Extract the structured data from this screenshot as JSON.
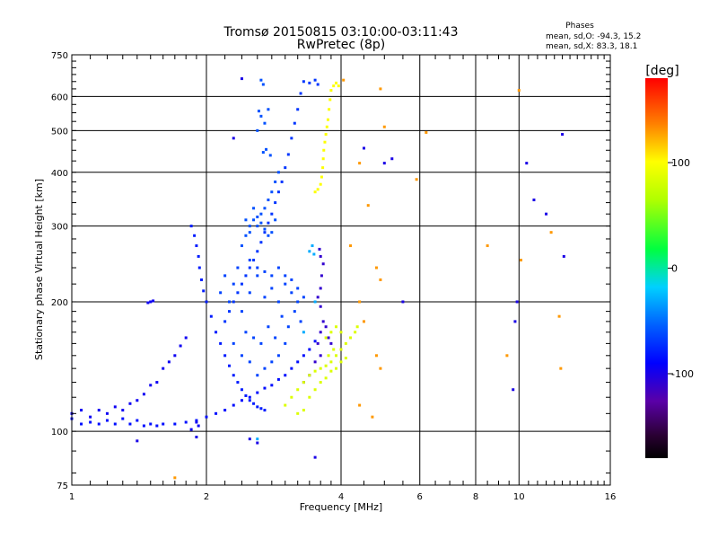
{
  "chart_data": {
    "type": "scatter",
    "title": "Tromsø 20150815 03:10:00-03:11:43",
    "subtitle": "RwPretec (8p)",
    "phases_header": {
      "title": "Phases",
      "line_o": "mean, sd,O: -94.3, 15.2",
      "line_x": "mean, sd,X:  83.3, 18.1"
    },
    "xlabel": "Frequency [MHz]",
    "ylabel": "Stationary phase Virtual Height [km]",
    "xscale": "log",
    "yscale": "log",
    "xlim": [
      1,
      16
    ],
    "ylim": [
      75,
      750
    ],
    "x_ticks": [
      1,
      2,
      4,
      6,
      8,
      10,
      16
    ],
    "x_tick_labels": [
      "1",
      "2",
      "4",
      "6",
      "8",
      "10",
      "16"
    ],
    "y_ticks": [
      75,
      100,
      200,
      300,
      400,
      500,
      600,
      750
    ],
    "y_tick_labels": [
      "75",
      "100",
      "200",
      "300",
      "400",
      "500",
      "600",
      "750"
    ],
    "grid": true,
    "colorbar": {
      "label": "[deg]",
      "range": [
        -180,
        180
      ],
      "ticks": [
        100,
        0,
        -100
      ],
      "tick_labels": [
        "100",
        "0",
        "-100"
      ]
    },
    "series": [
      {
        "phase_deg": -85,
        "points": [
          [
            1.0,
            107
          ],
          [
            1.05,
            104
          ],
          [
            1.1,
            105
          ],
          [
            1.15,
            104
          ],
          [
            1.2,
            106
          ],
          [
            1.25,
            104
          ],
          [
            1.3,
            107
          ],
          [
            1.35,
            104
          ],
          [
            1.4,
            106
          ],
          [
            1.45,
            103
          ],
          [
            1.5,
            104
          ],
          [
            1.55,
            103
          ],
          [
            1.6,
            104
          ],
          [
            1.7,
            104
          ],
          [
            1.8,
            105
          ],
          [
            1.9,
            106
          ],
          [
            2.0,
            108
          ],
          [
            2.1,
            110
          ],
          [
            2.2,
            112
          ],
          [
            2.3,
            115
          ],
          [
            2.4,
            118
          ],
          [
            2.5,
            120
          ],
          [
            2.6,
            123
          ],
          [
            2.7,
            126
          ],
          [
            2.8,
            128
          ],
          [
            2.9,
            132
          ],
          [
            3.0,
            135
          ],
          [
            3.1,
            140
          ],
          [
            3.2,
            145
          ],
          [
            3.3,
            150
          ],
          [
            3.4,
            155
          ],
          [
            3.5,
            162
          ]
        ]
      },
      {
        "phase_deg": -95,
        "points": [
          [
            1.0,
            110
          ],
          [
            1.05,
            112
          ],
          [
            1.1,
            108
          ],
          [
            1.15,
            112
          ],
          [
            1.2,
            110
          ],
          [
            1.25,
            114
          ],
          [
            1.3,
            112
          ],
          [
            1.35,
            116
          ],
          [
            1.4,
            118
          ],
          [
            1.45,
            122
          ],
          [
            1.5,
            128
          ],
          [
            1.55,
            130
          ],
          [
            1.6,
            140
          ],
          [
            1.65,
            145
          ],
          [
            1.7,
            150
          ],
          [
            1.75,
            158
          ],
          [
            1.8,
            165
          ],
          [
            1.5,
            200
          ],
          [
            1.52,
            201
          ],
          [
            1.48,
            199
          ],
          [
            1.9,
            105
          ],
          [
            1.92,
            103
          ],
          [
            1.85,
            101
          ]
        ]
      },
      {
        "phase_deg": -80,
        "points": [
          [
            1.85,
            300
          ],
          [
            1.88,
            285
          ],
          [
            1.9,
            270
          ],
          [
            1.92,
            255
          ],
          [
            1.93,
            240
          ],
          [
            1.95,
            225
          ],
          [
            1.97,
            212
          ],
          [
            2.0,
            200
          ],
          [
            2.05,
            185
          ],
          [
            2.1,
            170
          ],
          [
            2.15,
            160
          ],
          [
            2.2,
            150
          ],
          [
            2.25,
            142
          ],
          [
            2.3,
            135
          ],
          [
            2.35,
            130
          ],
          [
            2.4,
            125
          ],
          [
            2.45,
            121
          ],
          [
            2.5,
            118
          ],
          [
            2.55,
            116
          ],
          [
            2.6,
            114
          ],
          [
            2.65,
            113
          ],
          [
            2.7,
            112
          ]
        ]
      },
      {
        "phase_deg": -70,
        "points": [
          [
            2.2,
            180
          ],
          [
            2.25,
            190
          ],
          [
            2.3,
            200
          ],
          [
            2.35,
            210
          ],
          [
            2.4,
            220
          ],
          [
            2.45,
            230
          ],
          [
            2.5,
            240
          ],
          [
            2.55,
            250
          ],
          [
            2.6,
            262
          ],
          [
            2.65,
            275
          ],
          [
            2.7,
            290
          ],
          [
            2.75,
            305
          ],
          [
            2.8,
            320
          ],
          [
            2.85,
            340
          ],
          [
            2.9,
            360
          ],
          [
            2.95,
            380
          ],
          [
            3.0,
            410
          ],
          [
            3.05,
            440
          ],
          [
            3.1,
            480
          ],
          [
            3.15,
            520
          ],
          [
            3.2,
            560
          ],
          [
            3.25,
            610
          ],
          [
            3.3,
            650
          ],
          [
            3.4,
            645
          ],
          [
            3.5,
            655
          ],
          [
            3.55,
            640
          ]
        ]
      },
      {
        "phase_deg": -60,
        "points": [
          [
            2.4,
            270
          ],
          [
            2.45,
            285
          ],
          [
            2.5,
            300
          ],
          [
            2.55,
            310
          ],
          [
            2.6,
            315
          ],
          [
            2.65,
            320
          ],
          [
            2.7,
            330
          ],
          [
            2.75,
            345
          ],
          [
            2.8,
            360
          ],
          [
            2.85,
            380
          ],
          [
            2.9,
            400
          ],
          [
            2.6,
            300
          ],
          [
            2.7,
            295
          ],
          [
            2.8,
            290
          ],
          [
            2.5,
            290
          ],
          [
            2.45,
            310
          ],
          [
            2.55,
            330
          ],
          [
            2.65,
            305
          ],
          [
            2.75,
            285
          ],
          [
            2.85,
            310
          ],
          [
            2.6,
            500
          ],
          [
            2.62,
            555
          ],
          [
            2.65,
            540
          ],
          [
            2.7,
            520
          ],
          [
            2.75,
            560
          ],
          [
            2.68,
            445
          ],
          [
            2.72,
            452
          ],
          [
            2.78,
            438
          ],
          [
            2.65,
            655
          ],
          [
            2.68,
            640
          ]
        ]
      },
      {
        "phase_deg": -65,
        "points": [
          [
            2.4,
            190
          ],
          [
            2.5,
            210
          ],
          [
            2.6,
            230
          ],
          [
            2.7,
            205
          ],
          [
            2.8,
            215
          ],
          [
            2.9,
            200
          ],
          [
            3.0,
            220
          ],
          [
            3.1,
            210
          ],
          [
            3.2,
            200
          ],
          [
            2.45,
            170
          ],
          [
            2.55,
            165
          ],
          [
            2.65,
            160
          ],
          [
            2.75,
            175
          ],
          [
            2.85,
            165
          ],
          [
            2.95,
            185
          ],
          [
            3.05,
            175
          ],
          [
            3.15,
            190
          ],
          [
            2.5,
            250
          ],
          [
            2.6,
            240
          ],
          [
            2.7,
            235
          ],
          [
            2.8,
            230
          ],
          [
            2.9,
            240
          ],
          [
            3.0,
            230
          ],
          [
            3.1,
            225
          ],
          [
            3.2,
            215
          ],
          [
            3.3,
            205
          ],
          [
            3.25,
            180
          ],
          [
            3.0,
            160
          ],
          [
            2.9,
            150
          ],
          [
            2.8,
            145
          ],
          [
            2.7,
            140
          ],
          [
            2.6,
            135
          ],
          [
            2.5,
            145
          ],
          [
            2.4,
            150
          ],
          [
            2.3,
            160
          ],
          [
            2.3,
            220
          ],
          [
            2.35,
            240
          ],
          [
            2.25,
            200
          ],
          [
            2.2,
            230
          ],
          [
            2.15,
            210
          ]
        ]
      },
      {
        "phase_deg": -110,
        "points": [
          [
            3.3,
            130
          ],
          [
            3.4,
            135
          ],
          [
            3.5,
            145
          ],
          [
            3.6,
            150
          ],
          [
            3.55,
            160
          ],
          [
            3.6,
            170
          ],
          [
            3.65,
            180
          ],
          [
            3.6,
            195
          ],
          [
            3.55,
            205
          ],
          [
            3.6,
            215
          ],
          [
            3.62,
            230
          ],
          [
            3.65,
            245
          ],
          [
            3.6,
            255
          ],
          [
            3.58,
            265
          ],
          [
            3.7,
            175
          ],
          [
            3.75,
            165
          ],
          [
            3.8,
            160
          ]
        ]
      },
      {
        "phase_deg": 100,
        "points": [
          [
            3.5,
            360
          ],
          [
            3.55,
            365
          ],
          [
            3.6,
            375
          ],
          [
            3.62,
            390
          ],
          [
            3.64,
            410
          ],
          [
            3.65,
            430
          ],
          [
            3.66,
            450
          ],
          [
            3.68,
            470
          ],
          [
            3.7,
            490
          ],
          [
            3.72,
            510
          ],
          [
            3.74,
            530
          ],
          [
            3.76,
            560
          ],
          [
            3.78,
            590
          ],
          [
            3.8,
            620
          ],
          [
            3.85,
            635
          ],
          [
            3.9,
            645
          ],
          [
            3.95,
            635
          ]
        ]
      },
      {
        "phase_deg": 85,
        "points": [
          [
            3.0,
            115
          ],
          [
            3.1,
            120
          ],
          [
            3.2,
            125
          ],
          [
            3.3,
            130
          ],
          [
            3.4,
            135
          ],
          [
            3.5,
            138
          ],
          [
            3.6,
            140
          ],
          [
            3.7,
            142
          ],
          [
            3.8,
            145
          ],
          [
            3.9,
            150
          ],
          [
            4.0,
            155
          ],
          [
            4.1,
            160
          ],
          [
            4.2,
            165
          ],
          [
            4.3,
            170
          ],
          [
            4.35,
            175
          ],
          [
            3.2,
            110
          ],
          [
            3.3,
            112
          ],
          [
            3.4,
            120
          ],
          [
            3.5,
            125
          ],
          [
            3.6,
            130
          ],
          [
            3.7,
            133
          ],
          [
            3.8,
            138
          ],
          [
            3.9,
            140
          ],
          [
            4.0,
            145
          ],
          [
            4.1,
            148
          ],
          [
            3.7,
            165
          ],
          [
            3.8,
            170
          ],
          [
            3.9,
            175
          ],
          [
            4.0,
            170
          ],
          [
            3.75,
            150
          ],
          [
            3.85,
            155
          ]
        ]
      },
      {
        "phase_deg": 130,
        "points": [
          [
            4.05,
            655
          ],
          [
            4.9,
            625
          ],
          [
            5.0,
            510
          ],
          [
            4.4,
            420
          ],
          [
            4.6,
            335
          ],
          [
            4.2,
            270
          ],
          [
            4.8,
            240
          ],
          [
            4.9,
            225
          ],
          [
            4.4,
            200
          ],
          [
            4.5,
            180
          ],
          [
            4.8,
            150
          ],
          [
            4.9,
            140
          ],
          [
            4.4,
            115
          ],
          [
            4.7,
            108
          ],
          [
            5.9,
            385
          ],
          [
            6.2,
            495
          ],
          [
            8.5,
            270
          ],
          [
            10.0,
            620
          ],
          [
            10.1,
            250
          ],
          [
            9.4,
            150
          ],
          [
            11.8,
            290
          ],
          [
            12.3,
            185
          ],
          [
            12.4,
            140
          ],
          [
            1.7,
            78
          ]
        ]
      },
      {
        "phase_deg": -100,
        "points": [
          [
            4.5,
            455
          ],
          [
            5.2,
            430
          ],
          [
            5.0,
            420
          ],
          [
            5.5,
            200
          ],
          [
            10.4,
            420
          ],
          [
            10.8,
            345
          ],
          [
            11.5,
            320
          ],
          [
            12.5,
            490
          ],
          [
            12.6,
            255
          ],
          [
            9.9,
            200
          ],
          [
            9.8,
            180
          ],
          [
            9.7,
            125
          ],
          [
            1.4,
            95
          ],
          [
            1.9,
            97
          ],
          [
            2.5,
            96
          ],
          [
            2.6,
            94
          ],
          [
            3.5,
            87
          ],
          [
            2.3,
            480
          ],
          [
            2.4,
            660
          ]
        ]
      },
      {
        "phase_deg": -30,
        "points": [
          [
            3.45,
            270
          ],
          [
            3.4,
            262
          ],
          [
            3.48,
            258
          ],
          [
            2.6,
            96
          ],
          [
            3.5,
            200
          ],
          [
            3.3,
            170
          ]
        ]
      }
    ]
  }
}
